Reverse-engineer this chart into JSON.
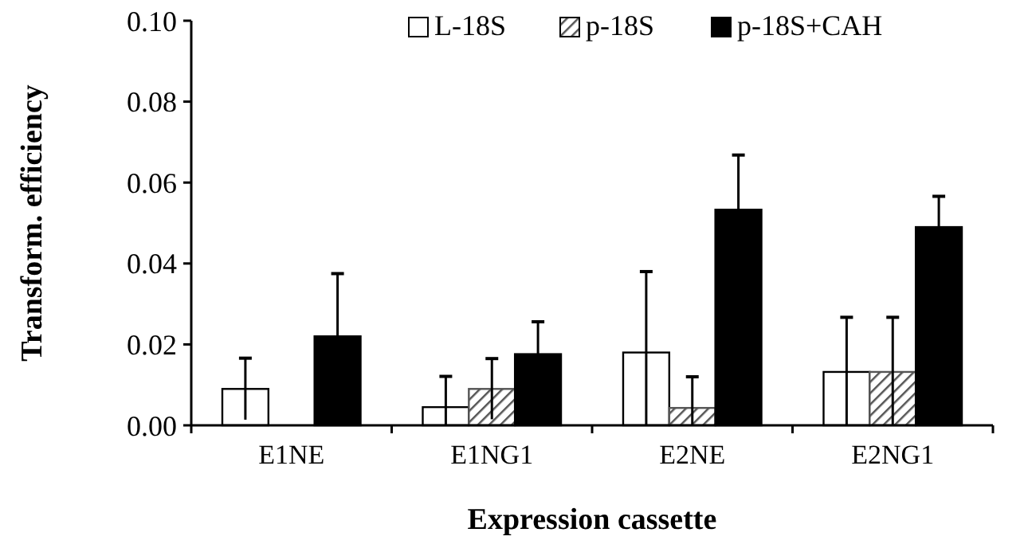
{
  "chart_data": {
    "type": "bar",
    "xlabel": "Expression cassette",
    "ylabel": "Transform. efficiency",
    "categories": [
      "E1NE",
      "E1NG1",
      "E2NE",
      "E2NG1"
    ],
    "series": [
      {
        "name": "L-18S",
        "color": "#ffffff",
        "values": [
          0.009,
          0.0045,
          0.018,
          0.0132
        ],
        "errors": [
          0.0076,
          [
            0,
            0.0121
          ],
          [
            0,
            0.038
          ],
          0.0135
        ]
      },
      {
        "name": "p-18S",
        "color": "#555555",
        "values": [
          0,
          0.009,
          0.0043,
          0.0132
        ],
        "errors": [
          null,
          0.0075,
          [
            0,
            0.012
          ],
          0.0135
        ]
      },
      {
        "name": "p-18S+CAH",
        "color": "#000000",
        "values": [
          0.022,
          0.0176,
          0.0533,
          0.049
        ],
        "errors": [
          0.0155,
          0.008,
          0.0135,
          0.0076
        ]
      }
    ],
    "ylim": [
      0,
      0.1
    ],
    "yticks": [
      {
        "value": 0,
        "label": "0.00"
      },
      {
        "value": 0.02,
        "label": "0.02"
      },
      {
        "value": 0.04,
        "label": "0.04"
      },
      {
        "value": 0.06,
        "label": "0.06"
      },
      {
        "value": 0.08,
        "label": "0.08"
      },
      {
        "value": 0.1,
        "label": "0.10"
      }
    ],
    "legend": "top",
    "grid": false
  }
}
